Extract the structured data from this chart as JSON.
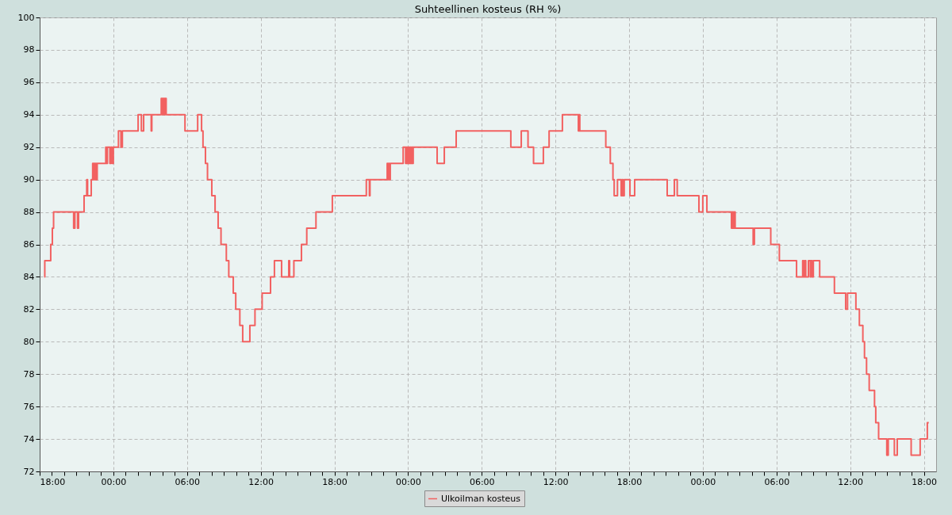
{
  "chart_data": {
    "type": "step",
    "title": "Suhteellinen kosteus (RH %)",
    "x": [
      "2000-01-01T18:23",
      "2000-01-01T18:25",
      "2000-01-01T18:54",
      "2000-01-01T19:02",
      "2000-01-01T19:08",
      "2000-01-01T20:46",
      "2000-01-01T20:52",
      "2000-01-01T21:05",
      "2000-01-01T21:10",
      "2000-01-01T21:37",
      "2000-01-01T21:50",
      "2000-01-01T21:54",
      "2000-01-01T22:12",
      "2000-01-01T22:19",
      "2000-01-01T22:23",
      "2000-01-01T22:26",
      "2000-01-01T22:30",
      "2000-01-01T22:34",
      "2000-01-01T22:37",
      "2000-01-01T22:41",
      "2000-01-01T23:23",
      "2000-01-01T23:26",
      "2000-01-01T23:31",
      "2000-01-01T23:43",
      "2000-01-01T23:48",
      "2000-01-01T23:54",
      "2000-01-02T00:00",
      "2000-01-02T00:25",
      "2000-01-02T00:37",
      "2000-01-02T00:44",
      "2000-01-02T02:01",
      "2000-01-02T02:17",
      "2000-01-02T02:28",
      "2000-01-02T03:05",
      "2000-01-02T03:08",
      "2000-01-02T03:54",
      "2000-01-02T04:00",
      "2000-01-02T04:03",
      "2000-01-02T04:09",
      "2000-01-02T04:12",
      "2000-01-02T04:18",
      "2000-01-02T05:50",
      "2000-01-02T06:52",
      "2000-01-02T07:11",
      "2000-01-02T07:18",
      "2000-01-02T07:30",
      "2000-01-02T07:40",
      "2000-01-02T08:01",
      "2000-01-02T08:17",
      "2000-01-02T08:32",
      "2000-01-02T08:46",
      "2000-01-02T09:12",
      "2000-01-02T09:24",
      "2000-01-02T09:46",
      "2000-01-02T09:58",
      "2000-01-02T10:18",
      "2000-01-02T10:32",
      "2000-01-02T11:07",
      "2000-01-02T11:32",
      "2000-01-02T12:07",
      "2000-01-02T12:48",
      "2000-01-02T13:07",
      "2000-01-02T13:42",
      "2000-01-02T14:17",
      "2000-01-02T14:21",
      "2000-01-02T14:42",
      "2000-01-02T15:19",
      "2000-01-02T15:45",
      "2000-01-02T16:30",
      "2000-01-02T17:50",
      "2000-01-02T20:36",
      "2000-01-02T20:51",
      "2000-01-02T20:54",
      "2000-01-02T22:18",
      "2000-01-02T22:21",
      "2000-01-02T22:25",
      "2000-01-02T22:29",
      "2000-01-02T22:33",
      "2000-01-02T23:36",
      "2000-01-02T23:48",
      "2000-01-02T23:52",
      "2000-01-02T23:56",
      "2000-01-03T00:00",
      "2000-01-03T00:04",
      "2000-01-03T00:08",
      "2000-01-03T00:13",
      "2000-01-03T00:17",
      "2000-01-03T00:22",
      "2000-01-03T00:25",
      "2000-01-03T02:22",
      "2000-01-03T02:57",
      "2000-01-03T03:55",
      "2000-01-03T08:22",
      "2000-01-03T09:13",
      "2000-01-03T09:46",
      "2000-01-03T10:13",
      "2000-01-03T11:01",
      "2000-01-03T11:29",
      "2000-01-03T12:34",
      "2000-01-03T13:52",
      "2000-01-03T13:55",
      "2000-01-03T13:59",
      "2000-01-03T16:06",
      "2000-01-03T16:28",
      "2000-01-03T16:41",
      "2000-01-03T16:47",
      "2000-01-03T17:03",
      "2000-01-03T17:21",
      "2000-01-03T17:25",
      "2000-01-03T17:30",
      "2000-01-03T17:36",
      "2000-01-03T18:04",
      "2000-01-03T18:27",
      "2000-01-03T21:06",
      "2000-01-03T21:41",
      "2000-01-03T21:55",
      "2000-01-03T23:41",
      "2000-01-04T00:00",
      "2000-01-04T00:20",
      "2000-01-04T02:20",
      "2000-01-04T02:24",
      "2000-01-04T02:29",
      "2000-01-04T02:34",
      "2000-01-04T02:38",
      "2000-01-04T04:06",
      "2000-01-04T04:12",
      "2000-01-04T05:32",
      "2000-01-04T06:14",
      "2000-01-04T07:38",
      "2000-01-04T08:08",
      "2000-01-04T08:12",
      "2000-01-04T08:18",
      "2000-01-04T08:23",
      "2000-01-04T08:36",
      "2000-01-04T08:45",
      "2000-01-04T08:48",
      "2000-01-04T08:54",
      "2000-01-04T09:00",
      "2000-01-04T09:31",
      "2000-01-04T10:43",
      "2000-01-04T11:38",
      "2000-01-04T11:47",
      "2000-01-04T12:28",
      "2000-01-04T12:45",
      "2000-01-04T13:02",
      "2000-01-04T13:10",
      "2000-01-04T13:20",
      "2000-01-04T13:33",
      "2000-01-04T13:59",
      "2000-01-04T14:05",
      "2000-01-04T14:19",
      "2000-01-04T14:59",
      "2000-01-04T15:06",
      "2000-01-04T15:36",
      "2000-01-04T15:50",
      "2000-01-04T16:58",
      "2000-01-04T17:42",
      "2000-01-04T18:17",
      "2000-01-04T18:24"
    ],
    "series": [
      {
        "name": "Ulkoilman kosteus",
        "color": "#f26161",
        "values": [
          84,
          85,
          86,
          87,
          88,
          87,
          88,
          87,
          88,
          89,
          90,
          89,
          90,
          91,
          90,
          91,
          90,
          91,
          90,
          91,
          92,
          91,
          92,
          91,
          92,
          91,
          92,
          93,
          92,
          93,
          94,
          93,
          94,
          93,
          94,
          95,
          94,
          95,
          94,
          95,
          94,
          93,
          94,
          93,
          92,
          91,
          90,
          89,
          88,
          87,
          86,
          85,
          84,
          83,
          82,
          81,
          80,
          81,
          82,
          83,
          84,
          85,
          84,
          85,
          84,
          85,
          86,
          87,
          88,
          89,
          90,
          89,
          90,
          91,
          90,
          91,
          90,
          91,
          92,
          91,
          92,
          91,
          92,
          91,
          92,
          91,
          92,
          91,
          92,
          91,
          92,
          93,
          92,
          93,
          92,
          91,
          92,
          93,
          94,
          93,
          94,
          93,
          92,
          91,
          90,
          89,
          90,
          89,
          90,
          89,
          90,
          89,
          90,
          89,
          90,
          89,
          88,
          89,
          88,
          87,
          88,
          87,
          88,
          87,
          86,
          87,
          86,
          85,
          84,
          85,
          84,
          85,
          84,
          85,
          84,
          85,
          84,
          85,
          84,
          83,
          82,
          83,
          82,
          81,
          80,
          79,
          78,
          77,
          76,
          75,
          74,
          73,
          74,
          73,
          74,
          73,
          74,
          75,
          75
        ]
      }
    ],
    "xlim": [
      "2000-01-01T18:00",
      "2000-01-04T19:00"
    ],
    "xticks": [
      {
        "value": "2000-01-01T18:00",
        "label": "18:00"
      },
      {
        "value": "2000-01-01T19:00",
        "label": null
      },
      {
        "value": "2000-01-01T20:00",
        "label": null
      },
      {
        "value": "2000-01-01T21:00",
        "label": null
      },
      {
        "value": "2000-01-01T22:00",
        "label": null
      },
      {
        "value": "2000-01-01T23:00",
        "label": null
      },
      {
        "value": "2000-01-02T00:00",
        "label": "00:00"
      },
      {
        "value": "2000-01-02T01:00",
        "label": null
      },
      {
        "value": "2000-01-02T02:00",
        "label": null
      },
      {
        "value": "2000-01-02T03:00",
        "label": null
      },
      {
        "value": "2000-01-02T04:00",
        "label": null
      },
      {
        "value": "2000-01-02T05:00",
        "label": null
      },
      {
        "value": "2000-01-02T06:00",
        "label": "06:00"
      },
      {
        "value": "2000-01-02T07:00",
        "label": null
      },
      {
        "value": "2000-01-02T08:00",
        "label": null
      },
      {
        "value": "2000-01-02T09:00",
        "label": null
      },
      {
        "value": "2000-01-02T10:00",
        "label": null
      },
      {
        "value": "2000-01-02T11:00",
        "label": null
      },
      {
        "value": "2000-01-02T12:00",
        "label": "12:00"
      },
      {
        "value": "2000-01-02T13:00",
        "label": null
      },
      {
        "value": "2000-01-02T14:00",
        "label": null
      },
      {
        "value": "2000-01-02T15:00",
        "label": null
      },
      {
        "value": "2000-01-02T16:00",
        "label": null
      },
      {
        "value": "2000-01-02T17:00",
        "label": null
      },
      {
        "value": "2000-01-02T18:00",
        "label": "18:00"
      },
      {
        "value": "2000-01-02T19:00",
        "label": null
      },
      {
        "value": "2000-01-02T20:00",
        "label": null
      },
      {
        "value": "2000-01-02T21:00",
        "label": null
      },
      {
        "value": "2000-01-02T22:00",
        "label": null
      },
      {
        "value": "2000-01-02T23:00",
        "label": null
      },
      {
        "value": "2000-01-03T00:00",
        "label": "00:00"
      },
      {
        "value": "2000-01-03T01:00",
        "label": null
      },
      {
        "value": "2000-01-03T02:00",
        "label": null
      },
      {
        "value": "2000-01-03T03:00",
        "label": null
      },
      {
        "value": "2000-01-03T04:00",
        "label": null
      },
      {
        "value": "2000-01-03T05:00",
        "label": null
      },
      {
        "value": "2000-01-03T06:00",
        "label": "06:00"
      },
      {
        "value": "2000-01-03T07:00",
        "label": null
      },
      {
        "value": "2000-01-03T08:00",
        "label": null
      },
      {
        "value": "2000-01-03T09:00",
        "label": null
      },
      {
        "value": "2000-01-03T10:00",
        "label": null
      },
      {
        "value": "2000-01-03T11:00",
        "label": null
      },
      {
        "value": "2000-01-03T12:00",
        "label": "12:00"
      },
      {
        "value": "2000-01-03T13:00",
        "label": null
      },
      {
        "value": "2000-01-03T14:00",
        "label": null
      },
      {
        "value": "2000-01-03T15:00",
        "label": null
      },
      {
        "value": "2000-01-03T16:00",
        "label": null
      },
      {
        "value": "2000-01-03T17:00",
        "label": null
      },
      {
        "value": "2000-01-03T18:00",
        "label": "18:00"
      },
      {
        "value": "2000-01-03T19:00",
        "label": null
      },
      {
        "value": "2000-01-03T20:00",
        "label": null
      },
      {
        "value": "2000-01-03T21:00",
        "label": null
      },
      {
        "value": "2000-01-03T22:00",
        "label": null
      },
      {
        "value": "2000-01-03T23:00",
        "label": null
      },
      {
        "value": "2000-01-04T00:00",
        "label": "00:00"
      },
      {
        "value": "2000-01-04T01:00",
        "label": null
      },
      {
        "value": "2000-01-04T02:00",
        "label": null
      },
      {
        "value": "2000-01-04T03:00",
        "label": null
      },
      {
        "value": "2000-01-04T04:00",
        "label": null
      },
      {
        "value": "2000-01-04T05:00",
        "label": null
      },
      {
        "value": "2000-01-04T06:00",
        "label": "06:00"
      },
      {
        "value": "2000-01-04T07:00",
        "label": null
      },
      {
        "value": "2000-01-04T08:00",
        "label": null
      },
      {
        "value": "2000-01-04T09:00",
        "label": null
      },
      {
        "value": "2000-01-04T10:00",
        "label": null
      },
      {
        "value": "2000-01-04T11:00",
        "label": null
      },
      {
        "value": "2000-01-04T12:00",
        "label": "12:00"
      },
      {
        "value": "2000-01-04T13:00",
        "label": null
      },
      {
        "value": "2000-01-04T14:00",
        "label": null
      },
      {
        "value": "2000-01-04T15:00",
        "label": null
      },
      {
        "value": "2000-01-04T16:00",
        "label": null
      },
      {
        "value": "2000-01-04T17:00",
        "label": null
      },
      {
        "value": "2000-01-04T18:00",
        "label": "18:00"
      }
    ],
    "ylim": [
      72,
      100
    ],
    "yticks": [
      72,
      74,
      76,
      78,
      80,
      82,
      84,
      86,
      88,
      90,
      92,
      94,
      96,
      98,
      100
    ],
    "grid": true,
    "legend": "bottom",
    "line_style": "solid"
  }
}
